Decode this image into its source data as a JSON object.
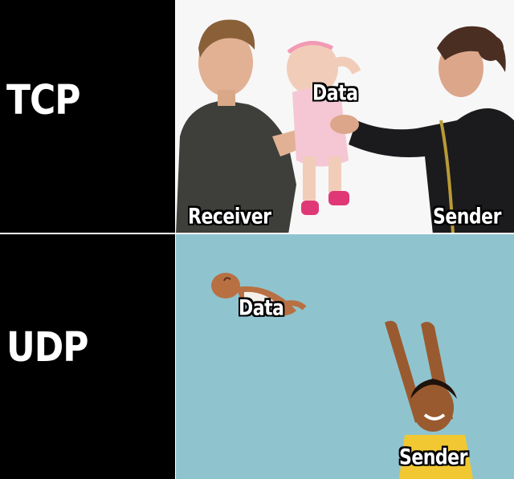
{
  "tcp_panel": {
    "label": "TCP",
    "captions": {
      "data": "Data",
      "receiver": "Receiver",
      "sender": "Sender"
    }
  },
  "udp_panel": {
    "label": "UDP",
    "captions": {
      "data": "Data",
      "sender": "Sender"
    }
  },
  "colors": {
    "label_background": "#000000",
    "label_text": "#ffffff",
    "tcp_background": "#ffffff",
    "udp_background": "#8fc4cf"
  }
}
